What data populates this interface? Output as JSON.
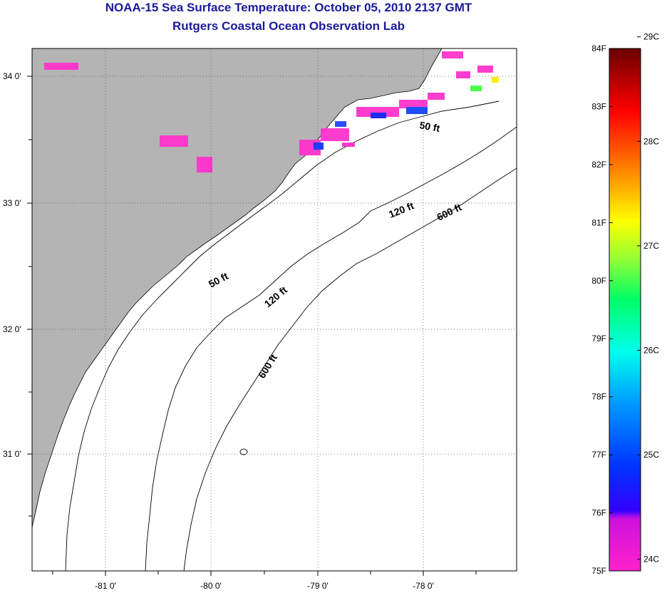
{
  "header": {
    "title": "NOAA-15 Sea Surface Temperature:  October 05, 2010 2137 GMT",
    "subtitle": "Rutgers Coastal Ocean Observation Lab"
  },
  "map": {
    "lon_range": [
      -81.7,
      -77.1
    ],
    "lat_range": [
      30.2,
      34.2
    ],
    "lat_ticks": [
      {
        "value": 34,
        "label": "34 0'"
      },
      {
        "value": 33,
        "label": "33 0'"
      },
      {
        "value": 32,
        "label": "32 0'"
      },
      {
        "value": 31,
        "label": "31 0'"
      }
    ],
    "lon_ticks": [
      {
        "value": -81,
        "label": "-81 0'"
      },
      {
        "value": -80,
        "label": "-80 0'"
      },
      {
        "value": -79,
        "label": "-79 0'"
      },
      {
        "value": -78,
        "label": "-78 0'"
      }
    ],
    "contour_labels": [
      {
        "text": "50 ft",
        "depth": 50
      },
      {
        "text": "120 ft",
        "depth": 120
      },
      {
        "text": "600 ft",
        "depth": 600
      },
      {
        "text": "50 ft",
        "depth": 50
      },
      {
        "text": "120 ft",
        "depth": 120
      },
      {
        "text": "600 ft",
        "depth": 600
      }
    ],
    "colors": {
      "land": "#b4b4b4",
      "water": "#ffffff",
      "grid": "#555555"
    }
  },
  "colorbar": {
    "fahrenheit_labels": [
      "84F",
      "83F",
      "82F",
      "81F",
      "80F",
      "79F",
      "78F",
      "77F",
      "76F",
      "75F"
    ],
    "celsius_labels": [
      "29C",
      "28C",
      "27C",
      "26C",
      "25C",
      "24C"
    ],
    "stops": [
      "#ff22cc",
      "#8800dd",
      "#0000ff",
      "#0099ff",
      "#00ffee",
      "#00ff66",
      "#ffff00",
      "#ff8800",
      "#ff0000",
      "#7a0000"
    ]
  }
}
